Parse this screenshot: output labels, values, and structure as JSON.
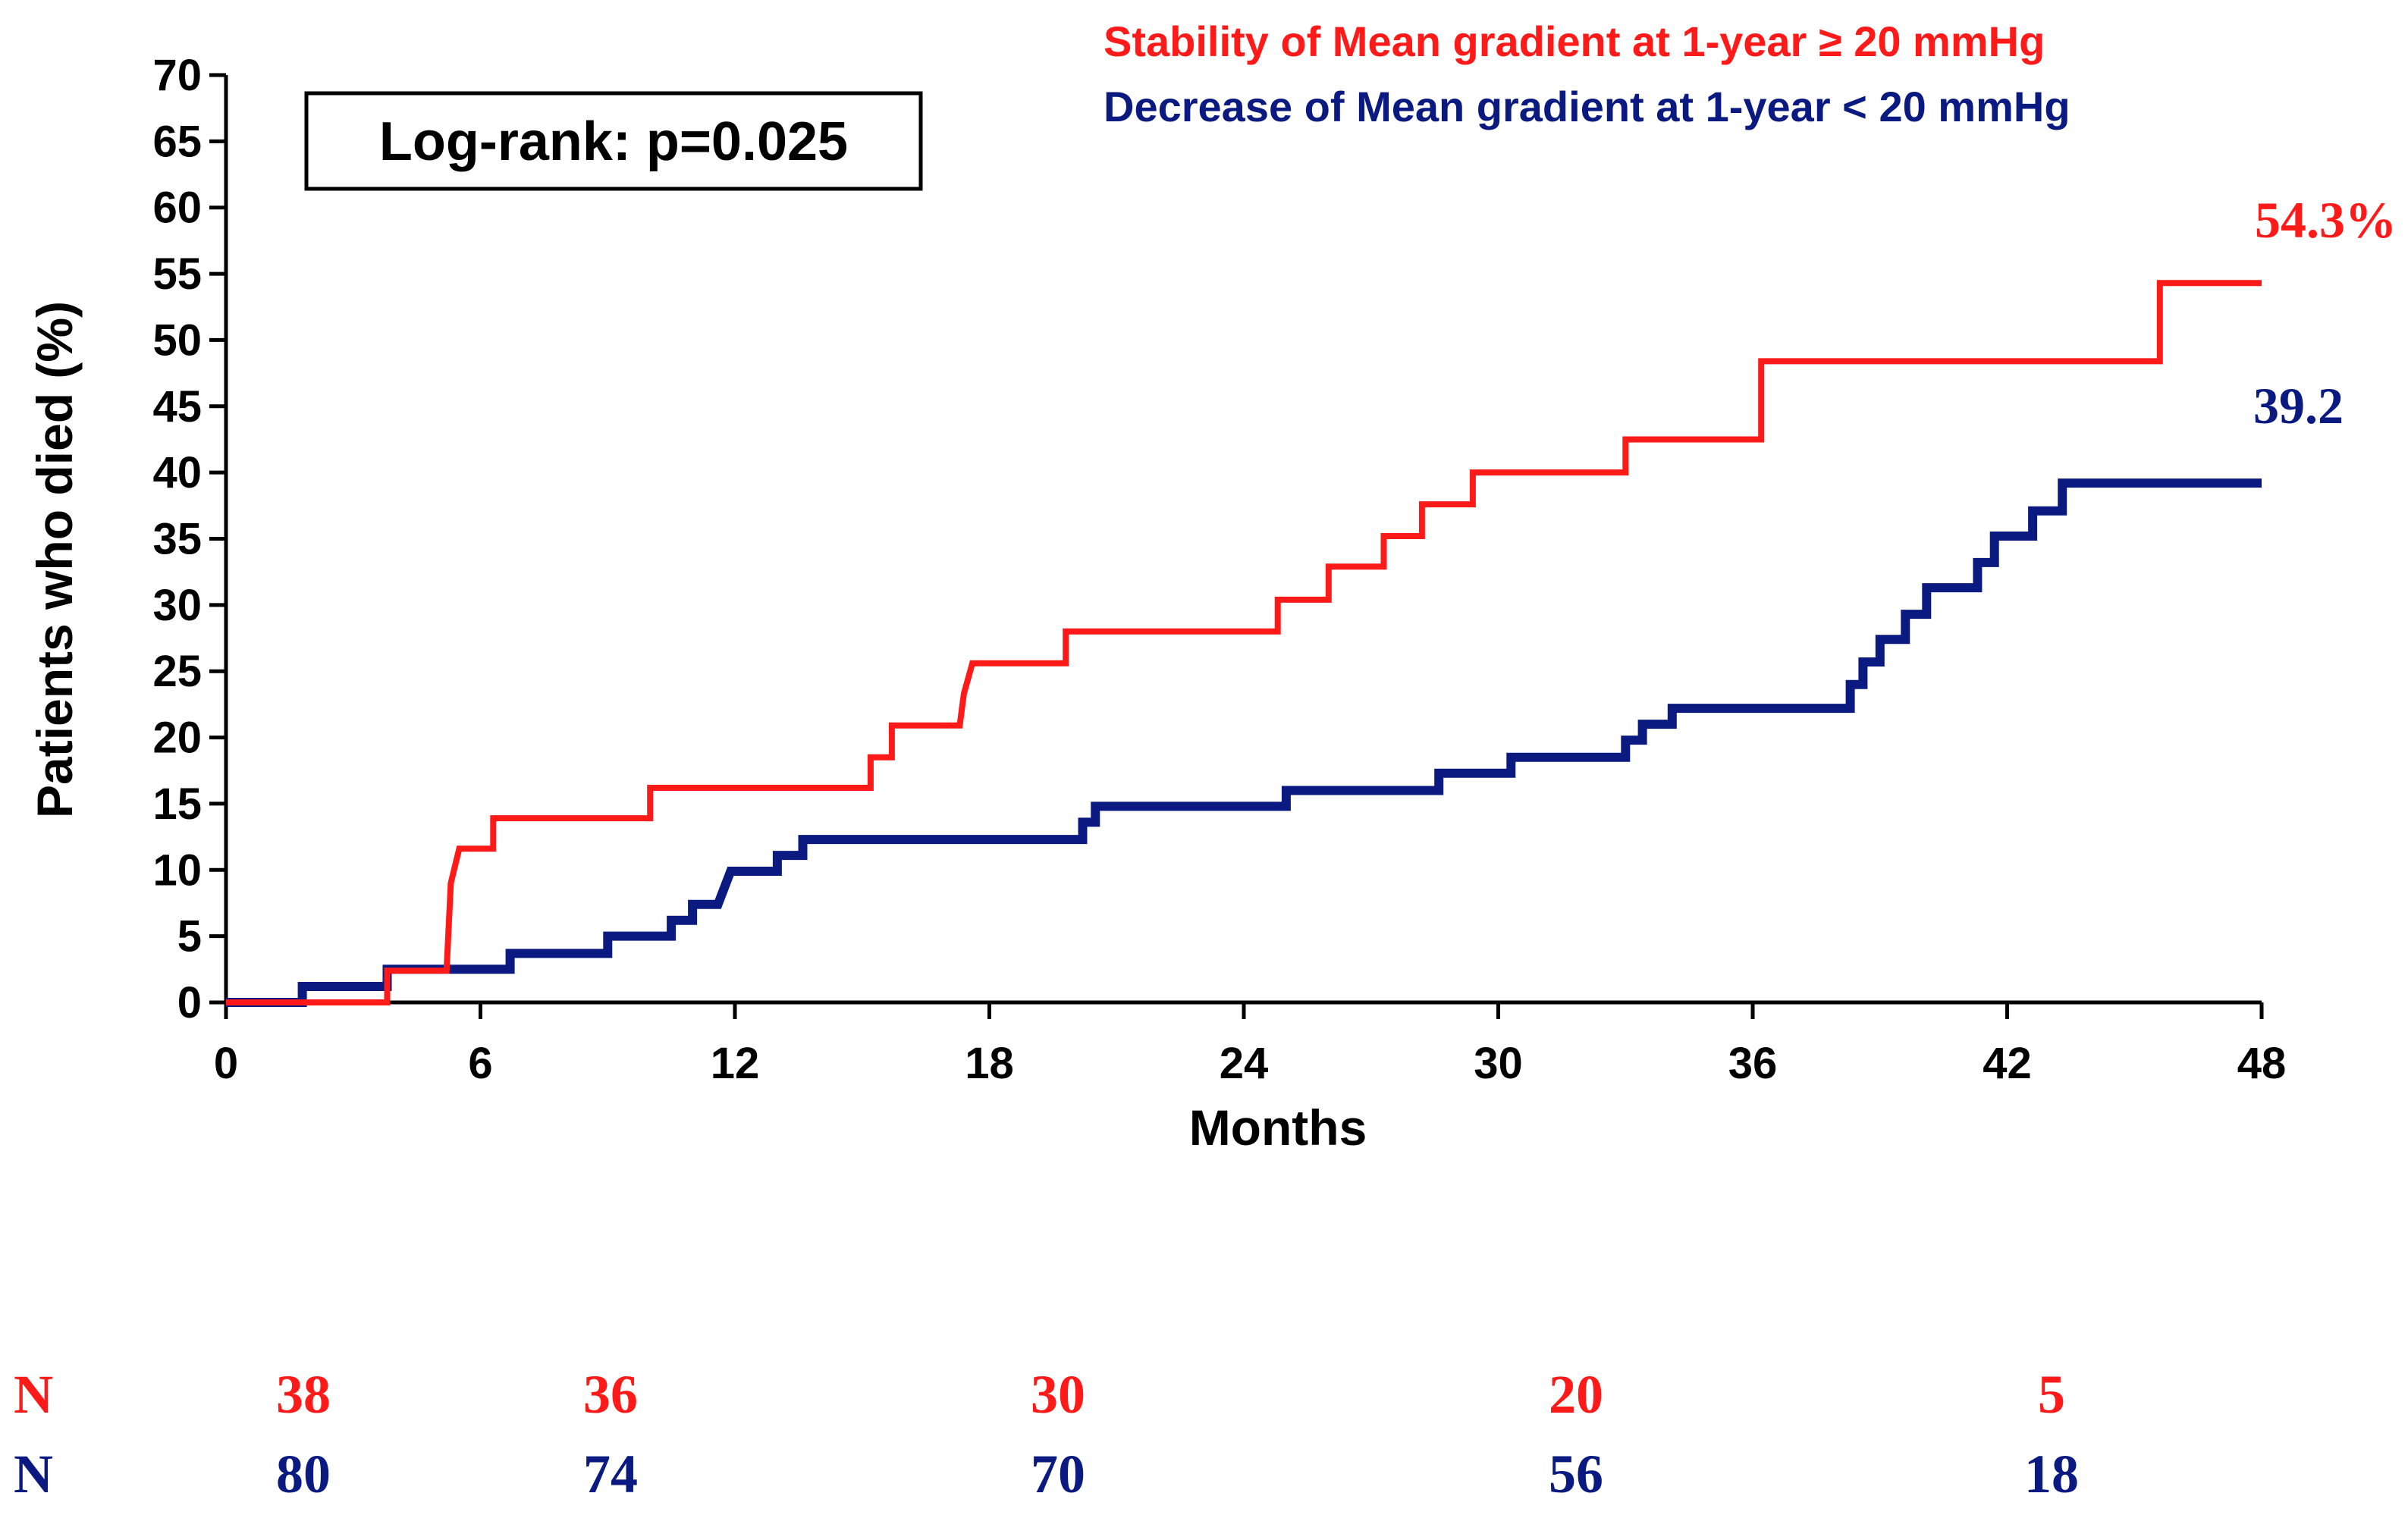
{
  "chart_data": {
    "type": "line",
    "subtype": "kaplan-meier-step",
    "title": "",
    "xlabel": "Months",
    "ylabel": "Patients who died (%)",
    "xlim": [
      0,
      48
    ],
    "ylim": [
      0,
      70
    ],
    "x_ticks": [
      0,
      6,
      12,
      18,
      24,
      30,
      36,
      42,
      48
    ],
    "y_ticks": [
      0,
      5,
      10,
      15,
      20,
      25,
      30,
      35,
      40,
      45,
      50,
      55,
      60,
      65,
      70
    ],
    "annotation": "Log-rank: p=0.025",
    "series": [
      {
        "name": "Stability of Mean gradient at 1-year ≥ 20 mmHg",
        "color": "#ff1a1a",
        "end_label": "54.3%",
        "points": [
          [
            0,
            0
          ],
          [
            3.8,
            0
          ],
          [
            3.8,
            2.4
          ],
          [
            5.2,
            2.4
          ],
          [
            5.3,
            9
          ],
          [
            5.5,
            11.6
          ],
          [
            6.3,
            11.6
          ],
          [
            6.3,
            13.9
          ],
          [
            10,
            13.9
          ],
          [
            10,
            16.2
          ],
          [
            15.2,
            16.2
          ],
          [
            15.2,
            18.5
          ],
          [
            15.7,
            18.5
          ],
          [
            15.7,
            20.9
          ],
          [
            17.3,
            20.9
          ],
          [
            17.4,
            23.3
          ],
          [
            17.6,
            25.6
          ],
          [
            19.8,
            25.6
          ],
          [
            19.8,
            28
          ],
          [
            24.8,
            28
          ],
          [
            24.8,
            30.4
          ],
          [
            26,
            30.4
          ],
          [
            26,
            32.9
          ],
          [
            27.3,
            32.9
          ],
          [
            27.3,
            35.2
          ],
          [
            28.2,
            35.2
          ],
          [
            28.2,
            37.6
          ],
          [
            29.4,
            37.6
          ],
          [
            29.4,
            40
          ],
          [
            33,
            40
          ],
          [
            33,
            42.5
          ],
          [
            36.2,
            42.5
          ],
          [
            36.2,
            48.4
          ],
          [
            45.6,
            48.4
          ],
          [
            45.6,
            54.3
          ],
          [
            48,
            54.3
          ]
        ]
      },
      {
        "name": "Decrease of Mean gradient at 1-year < 20 mmHg",
        "color": "#0a1a80",
        "end_label": "39.2",
        "points": [
          [
            0,
            0
          ],
          [
            1.8,
            0
          ],
          [
            1.8,
            1.2
          ],
          [
            3.8,
            1.2
          ],
          [
            3.8,
            2.5
          ],
          [
            6.7,
            2.5
          ],
          [
            6.7,
            3.7
          ],
          [
            9,
            3.7
          ],
          [
            9,
            5
          ],
          [
            10.5,
            5
          ],
          [
            10.5,
            6.2
          ],
          [
            11,
            6.2
          ],
          [
            11,
            7.4
          ],
          [
            11.6,
            7.4
          ],
          [
            11.9,
            9.9
          ],
          [
            13,
            9.9
          ],
          [
            13,
            11.1
          ],
          [
            13.6,
            11.1
          ],
          [
            13.6,
            12.3
          ],
          [
            20.2,
            12.3
          ],
          [
            20.2,
            13.6
          ],
          [
            20.5,
            13.6
          ],
          [
            20.5,
            14.8
          ],
          [
            25,
            14.8
          ],
          [
            25,
            16
          ],
          [
            28.6,
            16
          ],
          [
            28.6,
            17.3
          ],
          [
            30.3,
            17.3
          ],
          [
            30.3,
            18.5
          ],
          [
            33,
            18.5
          ],
          [
            33,
            19.8
          ],
          [
            33.4,
            19.8
          ],
          [
            33.4,
            21
          ],
          [
            34.1,
            21
          ],
          [
            34.1,
            22.2
          ],
          [
            38.3,
            22.2
          ],
          [
            38.3,
            24
          ],
          [
            38.6,
            24
          ],
          [
            38.6,
            25.7
          ],
          [
            39,
            25.7
          ],
          [
            39,
            27.4
          ],
          [
            39.6,
            27.4
          ],
          [
            39.6,
            29.3
          ],
          [
            40.1,
            29.3
          ],
          [
            40.1,
            31.3
          ],
          [
            41.3,
            31.3
          ],
          [
            41.3,
            33.2
          ],
          [
            41.7,
            33.2
          ],
          [
            41.7,
            35.2
          ],
          [
            42.6,
            35.2
          ],
          [
            42.6,
            37.1
          ],
          [
            43.3,
            37.1
          ],
          [
            43.3,
            39.2
          ],
          [
            48,
            39.2
          ]
        ]
      }
    ],
    "risk_table": {
      "rows": [
        {
          "label": "N",
          "color": "#ff1a1a",
          "values": [
            "38",
            "36",
            "30",
            "20",
            "5"
          ]
        },
        {
          "label": "N",
          "color": "#0a1a80",
          "values": [
            "80",
            "74",
            "70",
            "56",
            "18"
          ]
        }
      ]
    }
  }
}
